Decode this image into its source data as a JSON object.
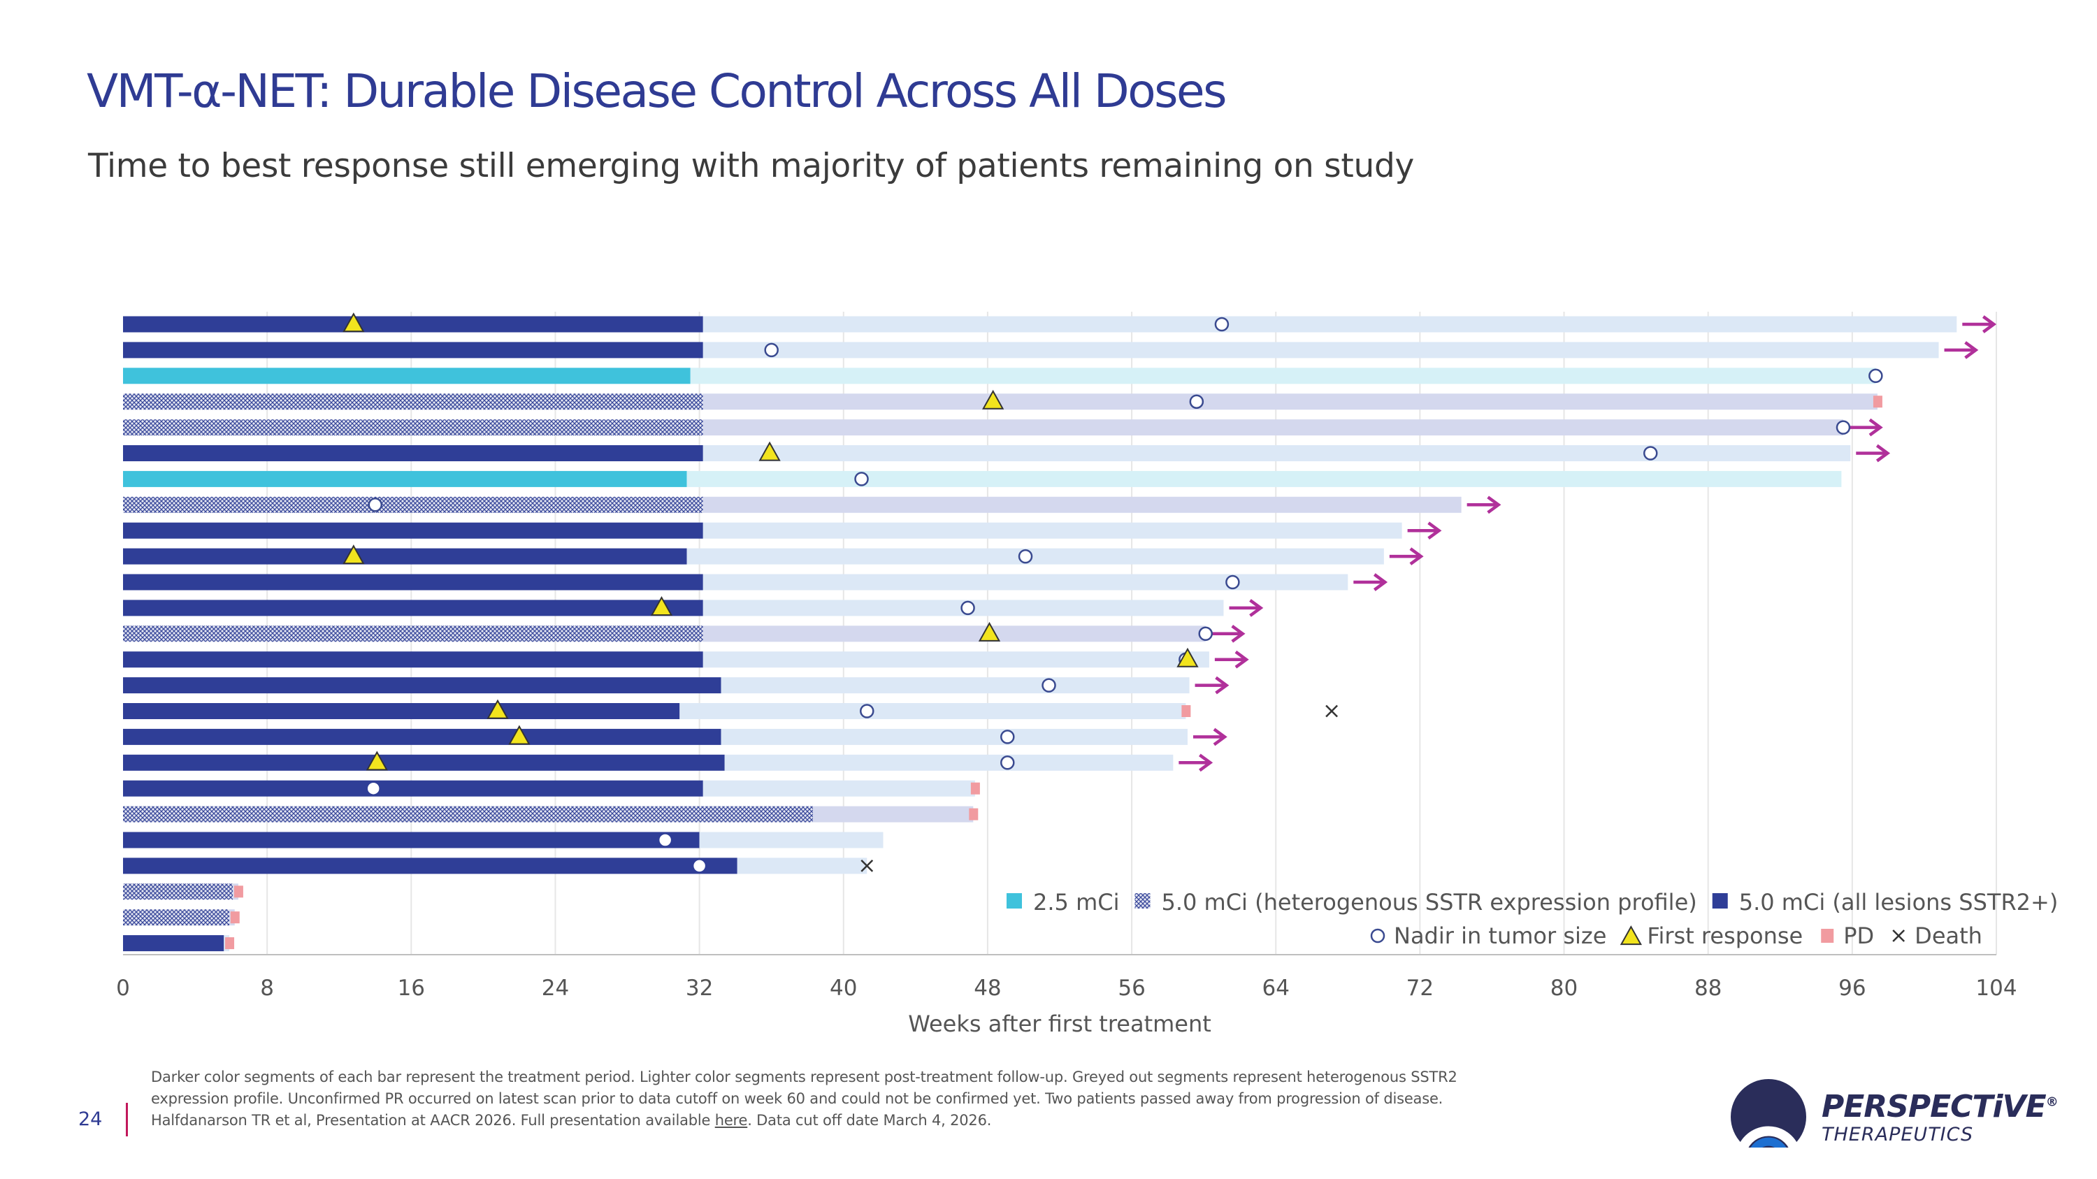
{
  "header": {
    "title": "VMT-α-NET: Durable Disease Control Across All Doses",
    "subtitle": "Time to best response still emerging with majority of patients remaining on study"
  },
  "chart_data": {
    "type": "bar",
    "orientation": "horizontal",
    "stacked": true,
    "title": "",
    "xlabel": "Weeks after first treatment",
    "ylabel": "",
    "xlim": [
      0,
      104
    ],
    "x_ticks": [
      0,
      8,
      16,
      24,
      32,
      40,
      48,
      56,
      64,
      72,
      80,
      88,
      96,
      104
    ],
    "grid": "vertical",
    "legend_position": "bottom-right",
    "legend": {
      "dose_items": [
        {
          "key": "low",
          "label": "2.5 mCi"
        },
        {
          "key": "het",
          "label": "5.0 mCi (heterogenous SSTR expression profile)"
        },
        {
          "key": "std",
          "label": "5.0 mCi (all lesions SSTR2+)"
        }
      ],
      "marker_items": [
        {
          "key": "nadir",
          "label": "Nadir in tumor size"
        },
        {
          "key": "response",
          "label": "First response"
        },
        {
          "key": "pd",
          "label": "PD"
        },
        {
          "key": "death",
          "label": "Death"
        }
      ]
    },
    "colors": {
      "std_treatment": "#2f3e97",
      "std_followup": "#dce8f6",
      "low_treatment": "#3fc2dc",
      "low_followup": "#d6f1f7",
      "het_followup": "#d4d8ee",
      "het_hatch_fg": "#3b4a9c",
      "het_hatch_bg": "#e4e6f2",
      "ongoing_arrow": "#b0309a",
      "pd": "#f19ba0",
      "response": "#f2e41e",
      "nadir_stroke": "#3a4a90",
      "gridline": "#e6e6e6",
      "axis_text": "#555555"
    },
    "patients": [
      {
        "dose": "std",
        "treatment_end": 32.2,
        "followup_end": 101.8,
        "ongoing": true,
        "response": 12.8,
        "nadir": 61
      },
      {
        "dose": "std",
        "treatment_end": 32.2,
        "followup_end": 100.8,
        "ongoing": true,
        "nadir": 36
      },
      {
        "dose": "low",
        "treatment_end": 31.5,
        "followup_end": 97.3,
        "nadir": 97.3
      },
      {
        "dose": "het",
        "treatment_end": 32.2,
        "followup_end": 97.4,
        "response": 48.3,
        "nadir": 59.6,
        "pd": 97.4
      },
      {
        "dose": "het",
        "treatment_end": 32.2,
        "followup_end": 95.5,
        "ongoing": true,
        "nadir": 95.5
      },
      {
        "dose": "std",
        "treatment_end": 32.2,
        "followup_end": 95.9,
        "ongoing": true,
        "response": 35.9,
        "nadir": 84.8
      },
      {
        "dose": "low",
        "treatment_end": 31.3,
        "followup_end": 95.4,
        "nadir": 41
      },
      {
        "dose": "het",
        "treatment_end": 32.2,
        "followup_end": 74.3,
        "ongoing": true,
        "nadir": 14
      },
      {
        "dose": "std",
        "treatment_end": 32.2,
        "followup_end": 71.0,
        "ongoing": true
      },
      {
        "dose": "std",
        "treatment_end": 31.3,
        "followup_end": 70.0,
        "ongoing": true,
        "response": 12.8,
        "nadir": 50.1
      },
      {
        "dose": "std",
        "treatment_end": 32.2,
        "followup_end": 68.0,
        "ongoing": true,
        "nadir": 61.6
      },
      {
        "dose": "std",
        "treatment_end": 32.2,
        "followup_end": 61.1,
        "ongoing": true,
        "response": 29.9,
        "nadir": 46.9
      },
      {
        "dose": "het",
        "treatment_end": 32.2,
        "followup_end": 60.1,
        "ongoing": true,
        "response": 48.1,
        "nadir": 60.1
      },
      {
        "dose": "std",
        "treatment_end": 32.2,
        "followup_end": 60.3,
        "ongoing": true,
        "response": 59.1,
        "nadir": 59.0
      },
      {
        "dose": "std",
        "treatment_end": 33.2,
        "followup_end": 59.2,
        "ongoing": true,
        "nadir": 51.4
      },
      {
        "dose": "std",
        "treatment_end": 30.9,
        "followup_end": 59.0,
        "response": 20.8,
        "nadir": 41.3,
        "pd": 59.0,
        "death": 67.1
      },
      {
        "dose": "std",
        "treatment_end": 33.2,
        "followup_end": 59.1,
        "ongoing": true,
        "response": 22.0,
        "nadir": 49.1
      },
      {
        "dose": "std",
        "treatment_end": 33.4,
        "followup_end": 58.3,
        "ongoing": true,
        "response": 14.1,
        "nadir": 49.1
      },
      {
        "dose": "std",
        "treatment_end": 32.2,
        "followup_end": 47.3,
        "nadir": 13.9,
        "nadir_on_treatment": true,
        "pd": 47.3
      },
      {
        "dose": "het",
        "treatment_end": 38.3,
        "followup_end": 47.2,
        "pd": 47.2
      },
      {
        "dose": "std",
        "treatment_end": 32.0,
        "followup_end": 42.2,
        "nadir": 30.1,
        "nadir_on_treatment": true
      },
      {
        "dose": "std",
        "treatment_end": 34.1,
        "followup_end": 41.3,
        "nadir": 32.0,
        "nadir_on_treatment": true,
        "death": 41.3
      },
      {
        "dose": "het",
        "treatment_end": 6.1,
        "followup_end": 6.4,
        "pd": 6.4
      },
      {
        "dose": "het",
        "treatment_end": 5.9,
        "followup_end": 6.2,
        "pd": 6.2
      },
      {
        "dose": "std",
        "treatment_end": 5.6,
        "followup_end": 5.9,
        "pd": 5.9
      }
    ]
  },
  "footnote": {
    "line1": "Darker color segments of each bar represent the treatment period. Lighter color segments represent post-treatment follow-up. Greyed out segments represent heterogenous SSTR2",
    "line2": "expression profile. Unconfirmed PR occurred on latest scan prior to data cutoff on week 60 and could not be confirmed yet. Two patients passed away from progression of disease.",
    "line3_pre": "Halfdanarson TR et al, Presentation at AACR 2026. Full presentation available ",
    "line3_link": "here",
    "line3_post": ". Data cut off date March 4, 2026."
  },
  "page": {
    "number": "24"
  },
  "logo": {
    "name": "PERSPECTiVE",
    "reg": "®",
    "sub": "THERAPEUTICS",
    "icon": "perspective-arc-logo-icon",
    "color": "#2a2d5a",
    "accent": "#1d6fd1"
  }
}
